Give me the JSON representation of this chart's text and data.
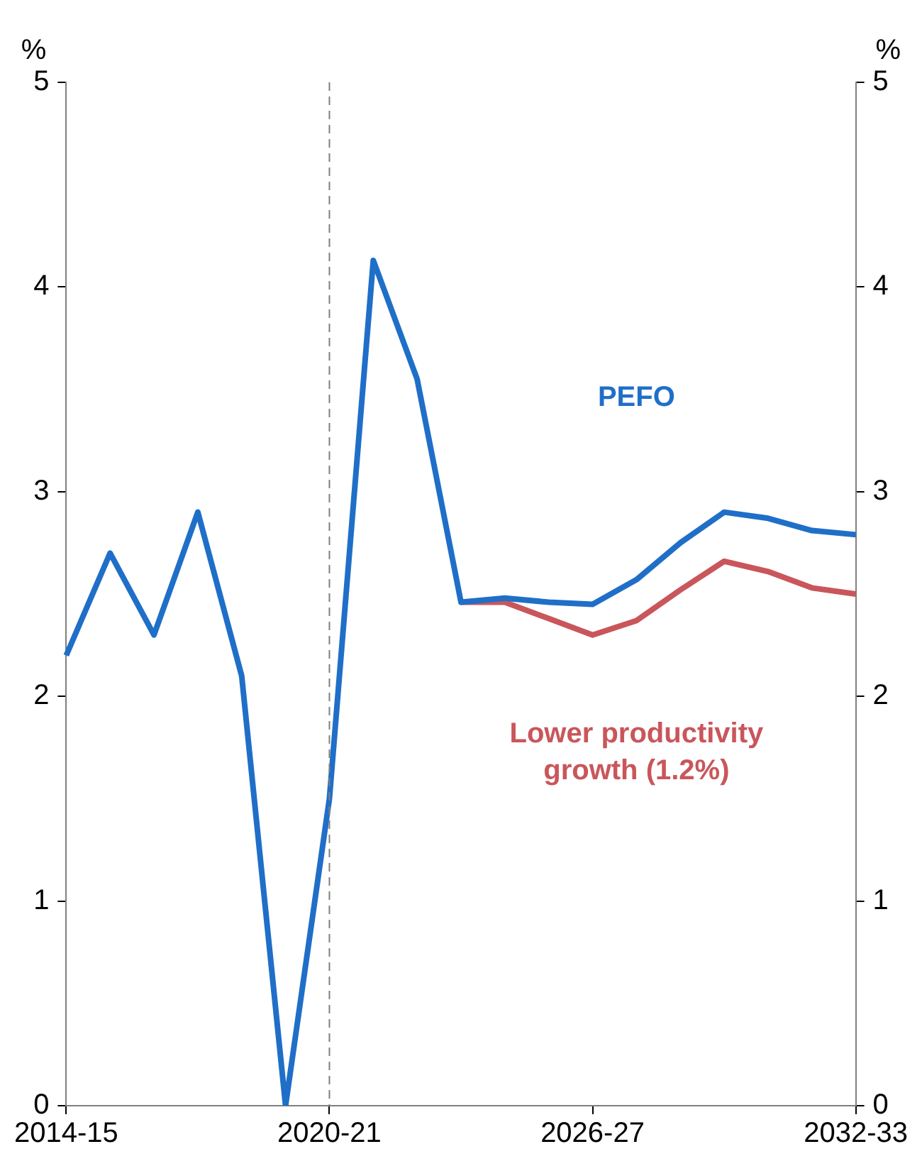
{
  "chart_data": {
    "type": "line",
    "ylabel": "%",
    "y2label": "%",
    "categories": [
      "2014-15",
      null,
      null,
      null,
      null,
      null,
      "2020-21",
      null,
      null,
      null,
      null,
      null,
      "2026-27",
      null,
      null,
      null,
      null,
      null,
      "2032-33"
    ],
    "series": [
      {
        "name": "PEFO",
        "color": "#1f6fc8",
        "values": [
          2.2,
          2.7,
          2.3,
          2.9,
          2.1,
          0.0,
          1.5,
          4.13,
          3.55,
          2.46,
          2.48,
          2.46,
          2.45,
          2.57,
          2.75,
          2.9,
          2.87,
          2.81,
          2.79
        ]
      },
      {
        "name": "Lower productivity growth (1.2%)",
        "color": "#c9565b",
        "values": [
          null,
          null,
          null,
          null,
          null,
          null,
          null,
          null,
          null,
          2.46,
          2.46,
          2.38,
          2.3,
          2.37,
          2.52,
          2.66,
          2.61,
          2.53,
          2.5
        ]
      }
    ],
    "ylim": [
      0,
      5
    ],
    "yticks": [
      0,
      1,
      2,
      3,
      4,
      5
    ],
    "y2lim": [
      0,
      5
    ],
    "y2ticks": [
      0,
      1,
      2,
      3,
      4,
      5
    ],
    "ref_lines": [
      {
        "axis": "x",
        "value": "2020-21",
        "color": "#7f7f7f",
        "line_style": "dashed"
      }
    ],
    "grid": false,
    "legend": false,
    "marker": "none",
    "line_style": "solid"
  }
}
